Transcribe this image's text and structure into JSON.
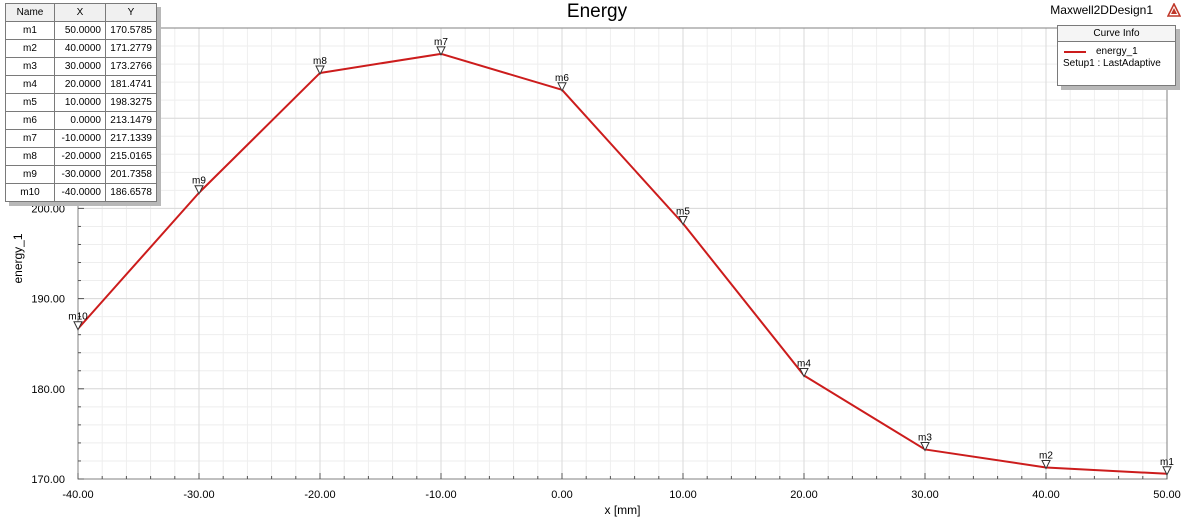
{
  "header": {
    "title": "Energy",
    "design_name": "Maxwell2DDesign1",
    "logo_icon": "ansys-logo-icon"
  },
  "colors": {
    "curve": "#cc1c1c",
    "grid_major": "#d9d9d9",
    "grid_minor": "#eeeeee",
    "marker": "#333333"
  },
  "marker_table": {
    "headers": [
      "Name",
      "X",
      "Y"
    ],
    "rows": [
      [
        "m1",
        "50.0000",
        "170.5785"
      ],
      [
        "m2",
        "40.0000",
        "171.2779"
      ],
      [
        "m3",
        "30.0000",
        "173.2766"
      ],
      [
        "m4",
        "20.0000",
        "181.4741"
      ],
      [
        "m5",
        "10.0000",
        "198.3275"
      ],
      [
        "m6",
        "0.0000",
        "213.1479"
      ],
      [
        "m7",
        "-10.0000",
        "217.1339"
      ],
      [
        "m8",
        "-20.0000",
        "215.0165"
      ],
      [
        "m9",
        "-30.0000",
        "201.7358"
      ],
      [
        "m10",
        "-40.0000",
        "186.6578"
      ]
    ]
  },
  "curve_info": {
    "title": "Curve Info",
    "series_name": "energy_1",
    "setup": "Setup1 : LastAdaptive"
  },
  "chart_data": {
    "type": "line",
    "title": "Energy",
    "xlabel": "x [mm]",
    "ylabel": "energy_1",
    "xlim": [
      -40,
      50
    ],
    "ylim": [
      170,
      220
    ],
    "grid": true,
    "legend_placement": "top-right",
    "x_ticks": [
      -40,
      -30,
      -20,
      -10,
      0,
      10,
      20,
      30,
      40,
      50
    ],
    "x_tick_labels": [
      "-40.00",
      "-30.00",
      "-20.00",
      "-10.00",
      "0.00",
      "10.00",
      "20.00",
      "30.00",
      "40.00",
      "50.00"
    ],
    "y_ticks": [
      170,
      180,
      190,
      200
    ],
    "y_tick_labels": [
      "170.00",
      "180.00",
      "190.00",
      "200.00"
    ],
    "series": [
      {
        "name": "energy_1",
        "x": [
          -40,
          -30,
          -20,
          -10,
          0,
          10,
          20,
          30,
          40,
          50
        ],
        "y": [
          186.6578,
          201.7358,
          215.0165,
          217.1339,
          213.1479,
          198.3275,
          181.4741,
          173.2766,
          171.2779,
          170.5785
        ]
      }
    ],
    "markers": [
      {
        "name": "m10",
        "x": -40,
        "y": 186.6578
      },
      {
        "name": "m9",
        "x": -30,
        "y": 201.7358
      },
      {
        "name": "m8",
        "x": -20,
        "y": 215.0165
      },
      {
        "name": "m7",
        "x": -10,
        "y": 217.1339
      },
      {
        "name": "m6",
        "x": 0,
        "y": 213.1479
      },
      {
        "name": "m5",
        "x": 10,
        "y": 198.3275
      },
      {
        "name": "m4",
        "x": 20,
        "y": 181.4741
      },
      {
        "name": "m3",
        "x": 30,
        "y": 173.2766
      },
      {
        "name": "m2",
        "x": 40,
        "y": 171.2779
      },
      {
        "name": "m1",
        "x": 50,
        "y": 170.5785
      }
    ]
  }
}
